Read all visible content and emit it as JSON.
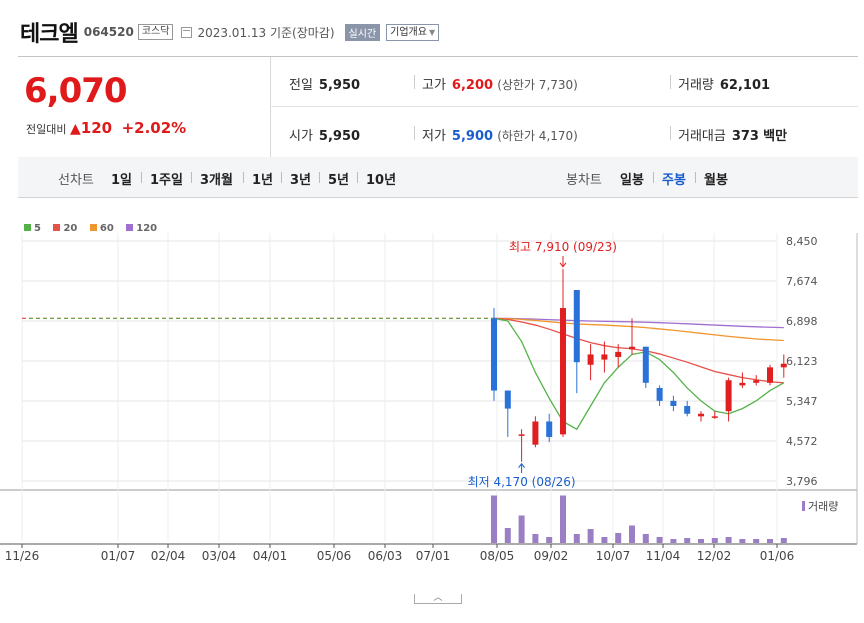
{
  "header": {
    "name": "테크엘",
    "code": "064520",
    "market": "코스닥",
    "date": "2023.01.13 기준(장마감)",
    "realtime": "실시간",
    "corp_info": "기업개요"
  },
  "quote": {
    "price": "6,070",
    "change_label": "전일대비",
    "change": "120",
    "change_pct": "+2.02%",
    "prev_label": "전일",
    "prev": "5,950",
    "open_label": "시가",
    "open": "5,950",
    "high_label": "고가",
    "high": "6,200",
    "upper_limit": "(상한가 7,730)",
    "low_label": "저가",
    "low": "5,900",
    "lower_limit": "(하한가 4,170)",
    "volume_label": "거래량",
    "volume": "62,101",
    "amount_label": "거래대금",
    "amount": "373",
    "amount_unit": "백만"
  },
  "toolbar": {
    "line_chart": "선차트",
    "periods": [
      "1일",
      "1주일",
      "3개월",
      "1년",
      "3년",
      "5년",
      "10년"
    ],
    "candle_chart": "봉차트",
    "candles": [
      "일봉",
      "주봉",
      "월봉"
    ],
    "selected_candle": "주봉"
  },
  "legend": [
    {
      "label": "5",
      "color": "#55b24a"
    },
    {
      "label": "20",
      "color": "#e8504a"
    },
    {
      "label": "60",
      "color": "#f0962e"
    },
    {
      "label": "120",
      "color": "#a070d0"
    }
  ],
  "chart_data": {
    "type": "candlestick",
    "y_ticks": [
      "8,450",
      "7,674",
      "6,898",
      "6,123",
      "5,347",
      "4,572",
      "3,796"
    ],
    "ylim": [
      3796,
      8450
    ],
    "x_ticks": [
      "11/26",
      "01/07",
      "02/04",
      "03/04",
      "04/01",
      "05/06",
      "06/03",
      "07/01",
      "08/05",
      "09/02",
      "10/07",
      "11/04",
      "12/02",
      "01/06"
    ],
    "high_annotation": "최고 7,910 (09/23)",
    "low_annotation": "최저 4,170 (08/26)",
    "volume_label": "거래량",
    "flat_value": 6950,
    "up_color": "#e02020",
    "down_color": "#2a72d8",
    "candles": [
      {
        "o": 6950,
        "h": 7150,
        "l": 5350,
        "c": 5550
      },
      {
        "o": 5550,
        "h": 5550,
        "l": 4650,
        "c": 5200
      },
      {
        "o": 4700,
        "h": 4800,
        "l": 4170,
        "c": 4700
      },
      {
        "o": 4500,
        "h": 5050,
        "l": 4450,
        "c": 4950
      },
      {
        "o": 4950,
        "h": 5100,
        "l": 4550,
        "c": 4650
      },
      {
        "o": 4700,
        "h": 7910,
        "l": 4650,
        "c": 7150
      },
      {
        "o": 7500,
        "h": 7500,
        "l": 5500,
        "c": 6100
      },
      {
        "o": 6050,
        "h": 6450,
        "l": 5750,
        "c": 6250
      },
      {
        "o": 6150,
        "h": 6500,
        "l": 5900,
        "c": 6250
      },
      {
        "o": 6200,
        "h": 6450,
        "l": 6000,
        "c": 6300
      },
      {
        "o": 6350,
        "h": 6950,
        "l": 6250,
        "c": 6400
      },
      {
        "o": 6400,
        "h": 6400,
        "l": 5600,
        "c": 5700
      },
      {
        "o": 5600,
        "h": 5650,
        "l": 5250,
        "c": 5350
      },
      {
        "o": 5350,
        "h": 5450,
        "l": 5150,
        "c": 5250
      },
      {
        "o": 5250,
        "h": 5350,
        "l": 5050,
        "c": 5100
      },
      {
        "o": 5050,
        "h": 5150,
        "l": 4950,
        "c": 5100
      },
      {
        "o": 5050,
        "h": 5150,
        "l": 5000,
        "c": 5050
      },
      {
        "o": 5150,
        "h": 5800,
        "l": 4950,
        "c": 5750
      },
      {
        "o": 5650,
        "h": 5900,
        "l": 5600,
        "c": 5700
      },
      {
        "o": 5700,
        "h": 5850,
        "l": 5650,
        "c": 5750
      },
      {
        "o": 5700,
        "h": 6050,
        "l": 5650,
        "c": 6000
      },
      {
        "o": 6000,
        "h": 6250,
        "l": 5800,
        "c": 6070
      }
    ],
    "volume": [
      0.95,
      0.3,
      0.55,
      0.18,
      0.12,
      0.95,
      0.18,
      0.28,
      0.12,
      0.2,
      0.35,
      0.18,
      0.12,
      0.08,
      0.1,
      0.08,
      0.1,
      0.12,
      0.08,
      0.08,
      0.08,
      0.1
    ],
    "ma5": [
      6950,
      6900,
      6500,
      5900,
      5400,
      4950,
      4800,
      5250,
      5700,
      6000,
      6250,
      6300,
      6150,
      5900,
      5600,
      5350,
      5150,
      5100,
      5200,
      5350,
      5550,
      5700
    ],
    "ma20": [
      6950,
      6930,
      6880,
      6820,
      6740,
      6650,
      6560,
      6480,
      6420,
      6380,
      6360,
      6320,
      6260,
      6180,
      6100,
      6010,
      5920,
      5860,
      5800,
      5760,
      5720,
      5700
    ],
    "ma60": [
      6950,
      6945,
      6930,
      6910,
      6885,
      6860,
      6840,
      6830,
      6820,
      6805,
      6790,
      6770,
      6745,
      6720,
      6690,
      6660,
      6630,
      6600,
      6575,
      6550,
      6535,
      6520
    ],
    "ma120": [
      6950,
      6948,
      6942,
      6935,
      6925,
      6915,
      6905,
      6898,
      6893,
      6888,
      6882,
      6875,
      6866,
      6855,
      6844,
      6832,
      6820,
      6808,
      6796,
      6786,
      6777,
      6770
    ]
  }
}
